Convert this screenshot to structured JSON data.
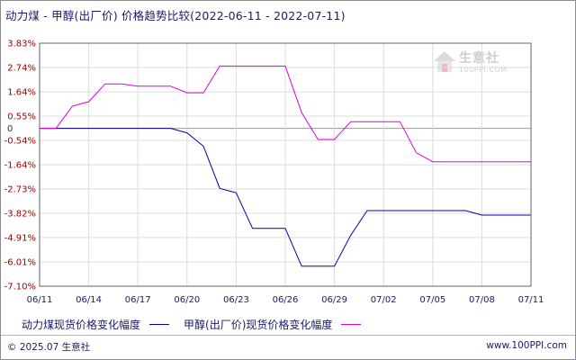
{
  "title": "动力煤 - 甲醇(出厂价) 价格趋势比较(2022-06-11 - 2022-07-11)",
  "zero_label": "0",
  "logo": {
    "name": "生意社",
    "url": "100PPI.COM"
  },
  "footer": {
    "copyright": "© 2025.07 生意社",
    "site": "www.100PPI.com"
  },
  "colors": {
    "series1": "#0000aa",
    "series2": "#e000e0",
    "grid": "#dcdcdc",
    "axis": "#666666",
    "ytick": "#a00000"
  },
  "chart_data": {
    "type": "line",
    "title": "动力煤 - 甲醇(出厂价) 价格趋势比较(2022-06-11 - 2022-07-11)",
    "xlabel": "",
    "ylabel": "",
    "ylim": [
      -7.1,
      3.83
    ],
    "grid": true,
    "legend_position": "bottom",
    "y_ticks": [
      "3.83%",
      "2.74%",
      "1.64%",
      "0.55%",
      "-0.54%",
      "-1.64%",
      "-2.73%",
      "-3.82%",
      "-4.91%",
      "-6.01%",
      "-7.10%"
    ],
    "y_tick_values": [
      3.83,
      2.74,
      1.64,
      0.55,
      -0.54,
      -1.64,
      -2.73,
      -3.82,
      -4.91,
      -6.01,
      -7.1
    ],
    "x_ticks": [
      "06/11",
      "06/14",
      "06/17",
      "06/20",
      "06/23",
      "06/26",
      "06/29",
      "07/02",
      "07/05",
      "07/08",
      "07/11"
    ],
    "x_dates": [
      "06/11",
      "06/12",
      "06/13",
      "06/14",
      "06/15",
      "06/16",
      "06/17",
      "06/18",
      "06/19",
      "06/20",
      "06/21",
      "06/22",
      "06/23",
      "06/24",
      "06/25",
      "06/26",
      "06/27",
      "06/28",
      "06/29",
      "06/30",
      "07/01",
      "07/02",
      "07/03",
      "07/04",
      "07/05",
      "07/06",
      "07/07",
      "07/08",
      "07/09",
      "07/10",
      "07/11"
    ],
    "series": [
      {
        "name": "动力煤现货价格变化幅度",
        "color": "#0000aa",
        "values": [
          0,
          0,
          0,
          0,
          0,
          0,
          0,
          0,
          0,
          -0.2,
          -0.8,
          -2.7,
          -2.9,
          -4.5,
          -4.5,
          -4.5,
          -6.2,
          -6.2,
          -6.2,
          -4.8,
          -3.7,
          -3.7,
          -3.7,
          -3.7,
          -3.7,
          -3.7,
          -3.7,
          -3.9,
          -3.9,
          -3.9,
          -3.9
        ]
      },
      {
        "name": "甲醇(出厂价)现货价格变化幅度",
        "color": "#e000e0",
        "values": [
          0,
          0,
          1.0,
          1.2,
          2.0,
          2.0,
          1.9,
          1.9,
          1.9,
          1.6,
          1.6,
          2.8,
          2.8,
          2.8,
          2.8,
          2.8,
          0.7,
          -0.5,
          -0.5,
          0.3,
          0.3,
          0.3,
          0.3,
          -1.1,
          -1.5,
          -1.5,
          -1.5,
          -1.5,
          -1.5,
          -1.5,
          -1.5
        ]
      }
    ]
  }
}
